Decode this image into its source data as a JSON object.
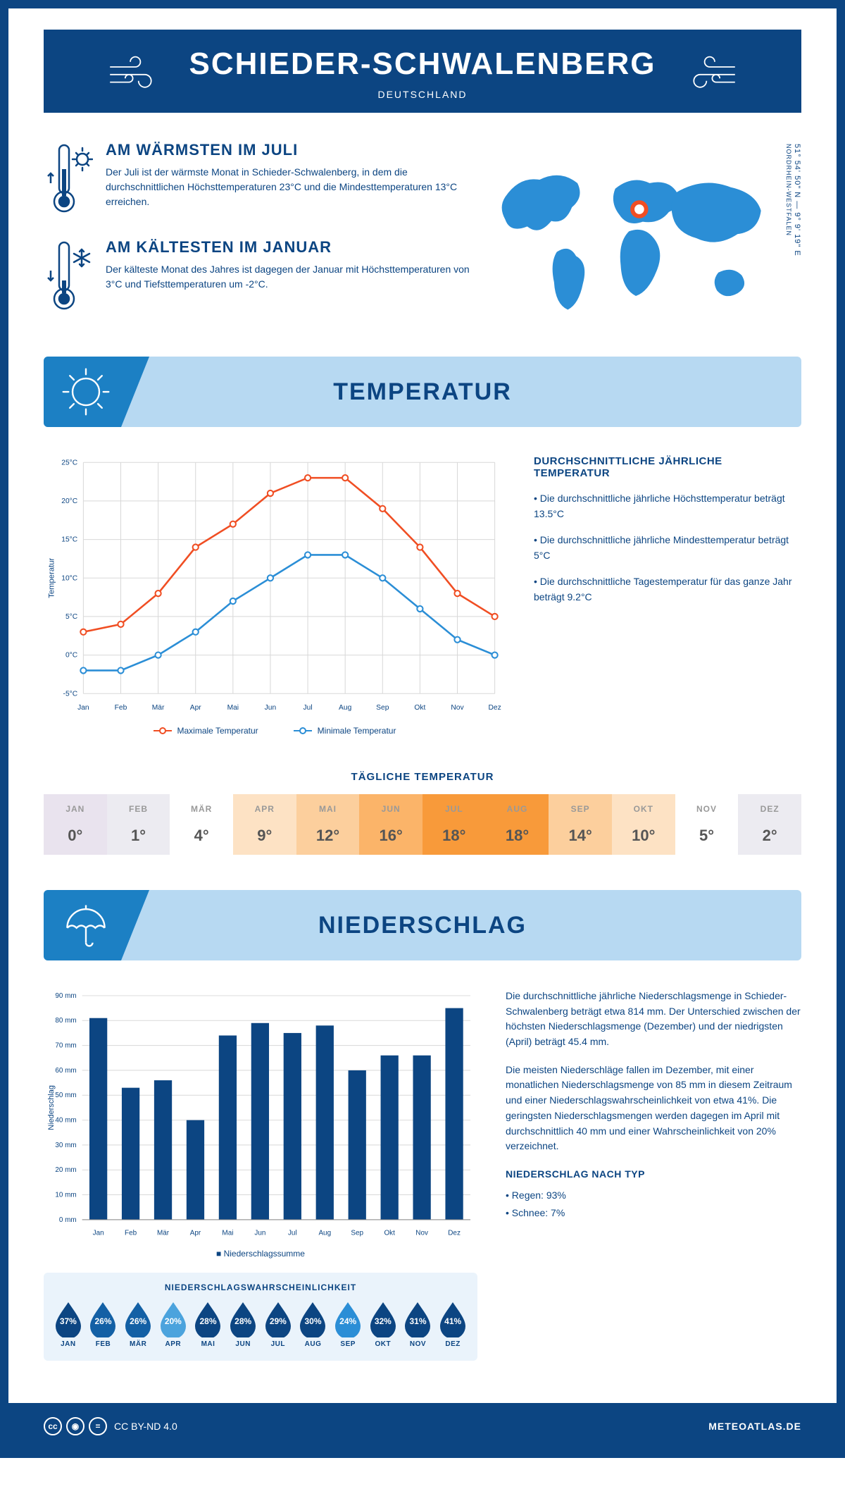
{
  "header": {
    "title": "SCHIEDER-SCHWALENBERG",
    "subtitle": "DEUTSCHLAND"
  },
  "location": {
    "coords": "51° 54' 50\" N — 9° 9' 19\" E",
    "region": "NORDRHEIN-WESTFALEN",
    "marker_color": "#f04e23"
  },
  "warmest": {
    "heading": "AM WÄRMSTEN IM JULI",
    "body": "Der Juli ist der wärmste Monat in Schieder-Schwalenberg, in dem die durchschnittlichen Höchsttemperaturen 23°C und die Mindesttemperaturen 13°C erreichen."
  },
  "coldest": {
    "heading": "AM KÄLTESTEN IM JANUAR",
    "body": "Der kälteste Monat des Jahres ist dagegen der Januar mit Höchsttemperaturen von 3°C und Tiefsttemperaturen um -2°C."
  },
  "sections": {
    "temperature": "TEMPERATUR",
    "precipitation": "NIEDERSCHLAG"
  },
  "temp_chart": {
    "type": "line",
    "months": [
      "Jan",
      "Feb",
      "Mär",
      "Apr",
      "Mai",
      "Jun",
      "Jul",
      "Aug",
      "Sep",
      "Okt",
      "Nov",
      "Dez"
    ],
    "max_values": [
      3,
      4,
      8,
      14,
      17,
      21,
      23,
      23,
      19,
      14,
      8,
      5
    ],
    "min_values": [
      -2,
      -2,
      0,
      3,
      7,
      10,
      13,
      13,
      10,
      6,
      2,
      0
    ],
    "max_color": "#f04e23",
    "min_color": "#2b8ed6",
    "ylim": [
      -5,
      25
    ],
    "ytick_step": 5,
    "ylabel": "Temperatur",
    "grid_color": "#d8d8d8",
    "legend_max": "Maximale Temperatur",
    "legend_min": "Minimale Temperatur"
  },
  "temp_text": {
    "heading": "DURCHSCHNITTLICHE JÄHRLICHE TEMPERATUR",
    "b1": "• Die durchschnittliche jährliche Höchsttemperatur beträgt 13.5°C",
    "b2": "• Die durchschnittliche jährliche Mindesttemperatur beträgt 5°C",
    "b3": "• Die durchschnittliche Tagestemperatur für das ganze Jahr beträgt 9.2°C"
  },
  "daily": {
    "title": "TÄGLICHE TEMPERATUR",
    "months": [
      "JAN",
      "FEB",
      "MÄR",
      "APR",
      "MAI",
      "JUN",
      "JUL",
      "AUG",
      "SEP",
      "OKT",
      "NOV",
      "DEZ"
    ],
    "values": [
      "0°",
      "1°",
      "4°",
      "9°",
      "12°",
      "16°",
      "18°",
      "18°",
      "14°",
      "10°",
      "5°",
      "2°"
    ],
    "cell_colors": [
      "#e9e3ee",
      "#ecebf1",
      "#ffffff",
      "#fde2c4",
      "#fccf9d",
      "#fbb469",
      "#f89a3a",
      "#f89a3a",
      "#fccf9d",
      "#fde2c4",
      "#ffffff",
      "#ecebf1"
    ]
  },
  "precip_chart": {
    "type": "bar",
    "months": [
      "Jan",
      "Feb",
      "Mär",
      "Apr",
      "Mai",
      "Jun",
      "Jul",
      "Aug",
      "Sep",
      "Okt",
      "Nov",
      "Dez"
    ],
    "values": [
      81,
      53,
      56,
      40,
      74,
      79,
      75,
      78,
      60,
      66,
      66,
      85
    ],
    "bar_color": "#0c4582",
    "ylim": [
      0,
      90
    ],
    "ytick_step": 10,
    "ylabel": "Niederschlag",
    "grid_color": "#d8d8d8",
    "legend": "Niederschlagssumme"
  },
  "precip_text": {
    "p1": "Die durchschnittliche jährliche Niederschlagsmenge in Schieder-Schwalenberg beträgt etwa 814 mm. Der Unterschied zwischen der höchsten Niederschlagsmenge (Dezember) und der niedrigsten (April) beträgt 45.4 mm.",
    "p2": "Die meisten Niederschläge fallen im Dezember, mit einer monatlichen Niederschlagsmenge von 85 mm in diesem Zeitraum und einer Niederschlagswahrscheinlichkeit von etwa 41%. Die geringsten Niederschlagsmengen werden dagegen im April mit durchschnittlich 40 mm und einer Wahrscheinlichkeit von 20% verzeichnet.",
    "type_heading": "NIEDERSCHLAG NACH TYP",
    "type_b1": "• Regen: 93%",
    "type_b2": "• Schnee: 7%"
  },
  "probability": {
    "title": "NIEDERSCHLAGSWAHRSCHEINLICHKEIT",
    "months": [
      "JAN",
      "FEB",
      "MÄR",
      "APR",
      "MAI",
      "JUN",
      "JUL",
      "AUG",
      "SEP",
      "OKT",
      "NOV",
      "DEZ"
    ],
    "values": [
      "37%",
      "26%",
      "26%",
      "20%",
      "28%",
      "28%",
      "29%",
      "30%",
      "24%",
      "32%",
      "31%",
      "41%"
    ],
    "drop_colors": [
      "#0c4582",
      "#1360a5",
      "#1360a5",
      "#4ba3dd",
      "#0c4582",
      "#0c4582",
      "#0c4582",
      "#0c4582",
      "#2b8ed6",
      "#0c4582",
      "#0c4582",
      "#0c4582"
    ]
  },
  "footer": {
    "license": "CC BY-ND 4.0",
    "site": "METEOATLAS.DE"
  },
  "colors": {
    "primary": "#0c4582",
    "banner_bg": "#b7d9f2",
    "banner_corner": "#1c80c4",
    "map_fill": "#2b8ed6"
  }
}
